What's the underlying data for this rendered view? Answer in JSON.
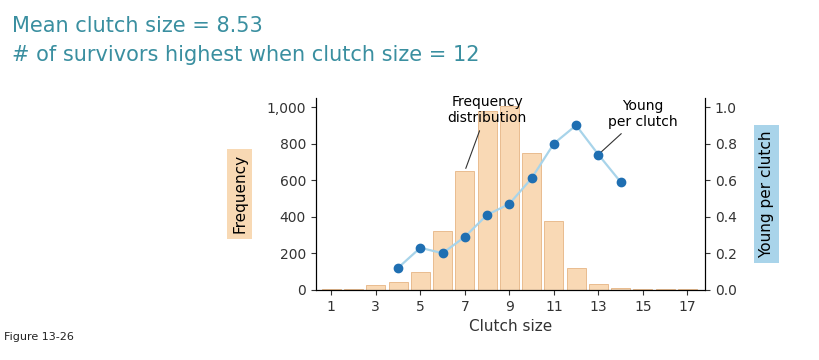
{
  "chart_data": {
    "type": "bar",
    "title": "Mean clutch size = 8.53",
    "subtitle": "# of survivors highest when clutch size = 12",
    "caption": "Figure 13-26",
    "annotations": [
      "Frequency\ndistribution",
      "Young\nper clutch"
    ],
    "x_label": "Clutch size",
    "y_label": "Frequency",
    "y2_label": "Young per clutch",
    "x": [
      1,
      2,
      3,
      4,
      5,
      6,
      7,
      8,
      9,
      10,
      11,
      12,
      13,
      14,
      15,
      16,
      17
    ],
    "series": [
      {
        "name": "Frequency",
        "type": "bar",
        "color": "#f9d9b5",
        "values": [
          3,
          3,
          25,
          40,
          100,
          320,
          650,
          980,
          1005,
          750,
          375,
          120,
          30,
          8,
          5,
          2,
          3
        ]
      },
      {
        "name": "Young per clutch",
        "type": "line",
        "axis": "y2",
        "color": "#a8d4ea",
        "marker": "o",
        "values": [
          null,
          null,
          null,
          0.12,
          0.23,
          0.2,
          0.29,
          0.41,
          0.47,
          0.61,
          0.8,
          0.9,
          0.74,
          0.59,
          null,
          null,
          null
        ]
      }
    ],
    "xlim": [
      0.3,
      17.8
    ],
    "xticks": [
      1,
      3,
      5,
      7,
      9,
      11,
      13,
      15,
      17
    ],
    "ylim": [
      0,
      1050
    ],
    "yticks": [
      0,
      200,
      400,
      600,
      800,
      {
        "value": 1000,
        "label": "1,000"
      }
    ],
    "y2lim": [
      0,
      1.05
    ],
    "y2ticks": [
      {
        "value": 0,
        "label": "0.0"
      },
      {
        "value": 0.2,
        "label": "0.2"
      },
      {
        "value": 0.4,
        "label": "0.4"
      },
      {
        "value": 0.6,
        "label": "0.6"
      },
      {
        "value": 0.8,
        "label": "0.8"
      },
      {
        "value": 1.0,
        "label": "1.0"
      }
    ],
    "grid": false
  }
}
